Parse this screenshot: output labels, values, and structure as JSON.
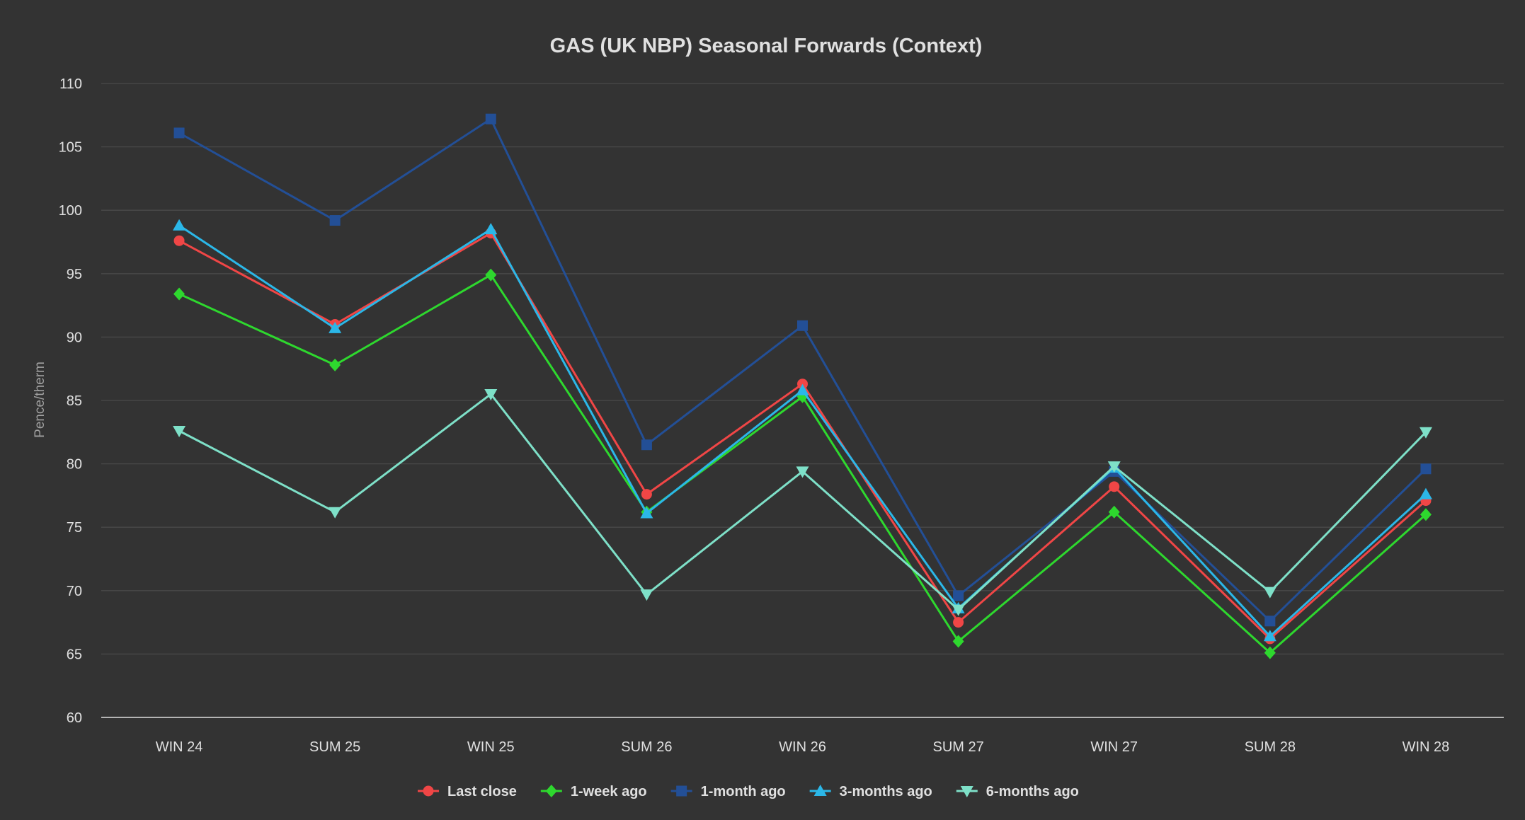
{
  "chart_data": {
    "type": "line",
    "title": "GAS (UK NBP) Seasonal Forwards (Context)",
    "ylabel": "Pence/therm",
    "xlabel": "",
    "ylim": [
      60,
      110
    ],
    "yticks": [
      60,
      65,
      70,
      75,
      80,
      85,
      90,
      95,
      100,
      105,
      110
    ],
    "grid": true,
    "legend_position": "bottom",
    "categories": [
      "WIN 24",
      "SUM 25",
      "WIN 25",
      "SUM 26",
      "WIN 26",
      "SUM 27",
      "WIN 27",
      "SUM 28",
      "WIN 28"
    ],
    "series": [
      {
        "name": "Last close",
        "color": "#f04646",
        "marker": "circle",
        "values": [
          97.6,
          91.0,
          98.2,
          77.6,
          86.3,
          67.5,
          78.2,
          66.2,
          77.1
        ]
      },
      {
        "name": "1-week ago",
        "color": "#2ed82e",
        "marker": "diamond",
        "values": [
          93.4,
          87.8,
          94.9,
          76.2,
          85.3,
          66.0,
          76.2,
          65.1,
          76.0
        ]
      },
      {
        "name": "1-month ago",
        "color": "#234f96",
        "marker": "square",
        "values": [
          106.1,
          99.2,
          107.2,
          81.5,
          90.9,
          69.6,
          79.4,
          67.6,
          79.6
        ]
      },
      {
        "name": "3-months ago",
        "color": "#2bb7e8",
        "marker": "triangle",
        "values": [
          98.8,
          90.7,
          98.5,
          76.1,
          85.8,
          68.6,
          79.7,
          66.4,
          77.6
        ]
      },
      {
        "name": "6-months ago",
        "color": "#7ee0c8",
        "marker": "triangle-down",
        "values": [
          82.6,
          76.2,
          85.5,
          69.7,
          79.4,
          68.5,
          79.8,
          69.9,
          82.5
        ]
      }
    ]
  }
}
